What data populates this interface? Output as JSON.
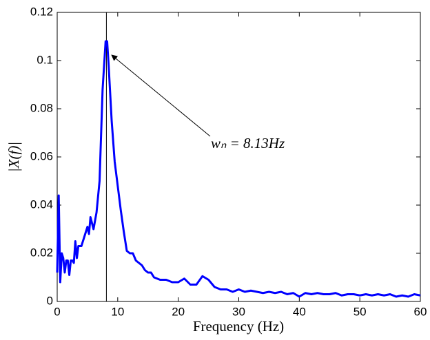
{
  "chart_data": {
    "type": "line",
    "xlabel": "Frequency (Hz)",
    "ylabel": "|X(f)|",
    "annotation": "wₙ = 8.13Hz",
    "vline_x": 8.13,
    "xlim": [
      0,
      60
    ],
    "ylim": [
      0,
      0.12
    ],
    "xticks": [
      0,
      10,
      20,
      30,
      40,
      50,
      60
    ],
    "yticks": [
      0,
      0.02,
      0.04,
      0.06,
      0.08,
      0.1,
      0.12
    ],
    "grid": false,
    "x": [
      0,
      0.25,
      0.5,
      0.75,
      1,
      1.25,
      1.5,
      1.75,
      2,
      2.25,
      2.5,
      2.75,
      3,
      3.25,
      3.5,
      4,
      4.5,
      5,
      5.25,
      5.5,
      6,
      6.5,
      7,
      7.5,
      8,
      8.25,
      8.5,
      9,
      9.5,
      10,
      10.5,
      11,
      11.5,
      12,
      12.5,
      13,
      13.5,
      14,
      14.5,
      15,
      15.5,
      16,
      17,
      18,
      19,
      20,
      21,
      22,
      23,
      24,
      25,
      26,
      27,
      28,
      29,
      30,
      31,
      32,
      33,
      34,
      35,
      36,
      37,
      38,
      39,
      40,
      41,
      42,
      43,
      44,
      45,
      46,
      47,
      48,
      49,
      50,
      51,
      52,
      53,
      54,
      55,
      56,
      57,
      58,
      59,
      60
    ],
    "series": [
      {
        "color": "#0000ff",
        "values": [
          0.012,
          0.044,
          0.008,
          0.02,
          0.018,
          0.012,
          0.017,
          0.017,
          0.011,
          0.017,
          0.017,
          0.016,
          0.025,
          0.018,
          0.023,
          0.023,
          0.027,
          0.031,
          0.028,
          0.035,
          0.03,
          0.037,
          0.05,
          0.088,
          0.108,
          0.108,
          0.098,
          0.075,
          0.058,
          0.048,
          0.038,
          0.029,
          0.021,
          0.02,
          0.02,
          0.017,
          0.016,
          0.015,
          0.013,
          0.012,
          0.012,
          0.01,
          0.009,
          0.009,
          0.008,
          0.008,
          0.0095,
          0.007,
          0.007,
          0.0105,
          0.009,
          0.006,
          0.005,
          0.005,
          0.004,
          0.005,
          0.004,
          0.0045,
          0.004,
          0.0035,
          0.004,
          0.0035,
          0.004,
          0.003,
          0.0035,
          0.002,
          0.0035,
          0.003,
          0.0035,
          0.003,
          0.003,
          0.0035,
          0.0025,
          0.003,
          0.003,
          0.0025,
          0.003,
          0.0025,
          0.003,
          0.0025,
          0.003,
          0.002,
          0.0025,
          0.002,
          0.003,
          0.0025
        ]
      }
    ]
  }
}
